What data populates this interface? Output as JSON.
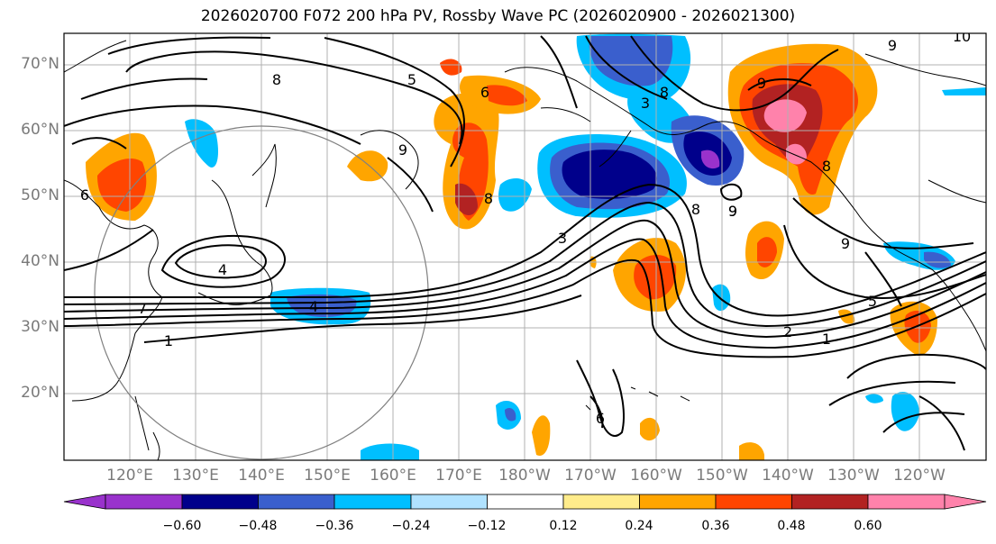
{
  "title": "2026020700 F072 200 hPa PV, Rossby Wave PC (2026020900 - 2026021300)",
  "lat_labels": [
    "70°N",
    "60°N",
    "50°N",
    "40°N",
    "30°N",
    "20°N"
  ],
  "lon_labels": [
    "120°E",
    "130°E",
    "140°E",
    "150°E",
    "160°E",
    "170°E",
    "180°W",
    "170°W",
    "160°W",
    "150°W",
    "140°W",
    "130°W",
    "120°W"
  ],
  "colorbar": {
    "ticks": [
      "−0.60",
      "−0.48",
      "−0.36",
      "−0.24",
      "−0.12",
      "0.12",
      "0.24",
      "0.36",
      "0.48",
      "0.60"
    ],
    "colors": [
      "#9932cc",
      "#00008b",
      "#3a5fcd",
      "#00bfff",
      "#b0e2ff",
      "#ffffff",
      "#ffec8b",
      "#ffa500",
      "#ff4500",
      "#b22222",
      "#ff82ab"
    ]
  },
  "contour_labels": [
    "8",
    "5",
    "6",
    "8",
    "9",
    "9",
    "4",
    "4",
    "7",
    "1",
    "6",
    "9",
    "3",
    "3",
    "8",
    "9",
    "8",
    "9",
    "5",
    "2",
    "1",
    "8",
    "9",
    "10",
    "6"
  ]
}
